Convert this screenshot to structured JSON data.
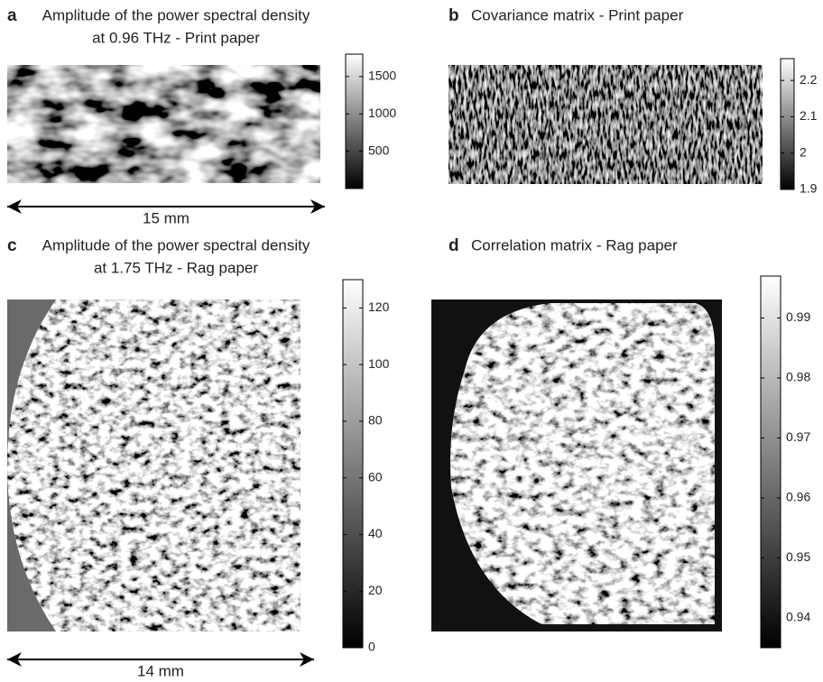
{
  "panels": [
    {
      "letter": "a",
      "title": [
        "Amplitude of the power spectral density",
        "at 0.96 THz - Print paper"
      ],
      "colorbar": {
        "clim": [
          0,
          1800
        ],
        "ticks": [
          500,
          1000,
          1500
        ]
      },
      "scale_bar": "15 mm"
    },
    {
      "letter": "b",
      "title": [
        "Covariance matrix - Print paper"
      ],
      "colorbar": {
        "clim": [
          1.9,
          2.26
        ],
        "ticks": [
          1.9,
          2,
          2.1,
          2.2
        ]
      }
    },
    {
      "letter": "c",
      "title": [
        "Amplitude of the power spectral density",
        "at 1.75 THz - Rag paper"
      ],
      "colorbar": {
        "clim": [
          0,
          130
        ],
        "ticks": [
          0,
          20,
          40,
          60,
          80,
          100,
          120
        ]
      },
      "scale_bar": "14 mm"
    },
    {
      "letter": "d",
      "title": [
        "Correlation matrix - Rag paper"
      ],
      "colorbar": {
        "clim": [
          0.935,
          0.997
        ],
        "ticks": [
          0.94,
          0.95,
          0.96,
          0.97,
          0.98,
          0.99
        ]
      }
    }
  ]
}
